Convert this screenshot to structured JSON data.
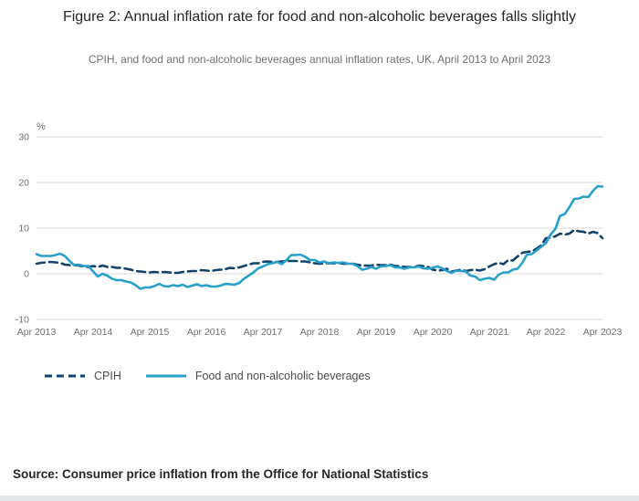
{
  "chart_data": {
    "type": "line",
    "title": "Figure 2: Annual inflation rate for food and non-alcoholic beverages falls slightly",
    "subtitle": "CPIH, and food and non-alcoholic beverages annual inflation rates, UK, April 2013 to April 2023",
    "y_unit": "%",
    "ylim": [
      -10,
      30
    ],
    "y_ticks": [
      30,
      20,
      10,
      0,
      -10
    ],
    "x_tick_labels": [
      "Apr 2013",
      "Apr 2014",
      "Apr 2015",
      "Apr 2016",
      "Apr 2017",
      "Apr 2018",
      "Apr 2019",
      "Apr 2020",
      "Apr 2021",
      "Apr 2022",
      "Apr 2023"
    ],
    "x_start": "Apr 2013",
    "x_end": "Apr 2023",
    "frequency": "monthly",
    "grid": true,
    "legend_position": "bottom-left",
    "series": [
      {
        "name": "CPIH",
        "color": "#12436D",
        "style": "dashed",
        "values": [
          2.2,
          2.4,
          2.5,
          2.6,
          2.5,
          2.4,
          2.0,
          1.9,
          1.9,
          1.8,
          1.6,
          1.5,
          1.7,
          1.5,
          1.8,
          1.5,
          1.5,
          1.3,
          1.3,
          1.1,
          0.9,
          0.6,
          0.5,
          0.4,
          0.3,
          0.4,
          0.3,
          0.4,
          0.3,
          0.2,
          0.2,
          0.4,
          0.5,
          0.6,
          0.6,
          0.8,
          0.7,
          0.6,
          0.8,
          0.9,
          1.0,
          1.3,
          1.2,
          1.4,
          1.7,
          2.0,
          2.3,
          2.3,
          2.6,
          2.7,
          2.6,
          2.6,
          2.7,
          2.8,
          2.8,
          2.8,
          2.7,
          2.7,
          2.5,
          2.3,
          2.2,
          2.3,
          2.3,
          2.3,
          2.4,
          2.2,
          2.2,
          2.2,
          2.0,
          1.8,
          1.8,
          1.8,
          2.0,
          1.9,
          1.9,
          2.0,
          1.7,
          1.7,
          1.5,
          1.5,
          1.4,
          1.8,
          1.7,
          1.5,
          0.9,
          0.7,
          0.8,
          1.1,
          0.5,
          0.7,
          0.9,
          0.6,
          0.8,
          0.9,
          0.7,
          1.0,
          1.6,
          2.1,
          2.4,
          2.1,
          3.0,
          2.9,
          3.8,
          4.6,
          4.8,
          4.9,
          5.5,
          6.2,
          7.8,
          7.9,
          8.2,
          8.8,
          8.6,
          8.8,
          9.6,
          9.3,
          9.2,
          8.8,
          9.2,
          8.9,
          7.8
        ]
      },
      {
        "name": "Food and non-alcoholic beverages",
        "color": "#27A0CC",
        "style": "solid",
        "values": [
          4.3,
          3.9,
          3.9,
          3.9,
          4.1,
          4.4,
          3.9,
          2.8,
          1.9,
          2.0,
          1.7,
          1.7,
          0.5,
          -0.6,
          0.0,
          -0.4,
          -1.1,
          -1.4,
          -1.4,
          -1.7,
          -1.9,
          -2.5,
          -3.3,
          -3.0,
          -3.0,
          -2.7,
          -2.2,
          -2.7,
          -2.8,
          -2.5,
          -2.7,
          -2.4,
          -2.9,
          -2.6,
          -2.3,
          -2.7,
          -2.5,
          -2.8,
          -2.8,
          -2.6,
          -2.2,
          -2.3,
          -2.4,
          -2.0,
          -1.1,
          -0.4,
          0.3,
          1.2,
          1.6,
          2.1,
          2.3,
          2.6,
          2.1,
          3.0,
          4.1,
          4.1,
          4.2,
          3.7,
          3.0,
          3.0,
          2.5,
          2.7,
          2.3,
          2.5,
          2.4,
          2.5,
          2.2,
          2.2,
          1.7,
          0.9,
          1.1,
          1.5,
          1.1,
          1.6,
          1.7,
          1.9,
          1.4,
          1.4,
          1.1,
          1.4,
          1.4,
          1.6,
          1.2,
          1.1,
          1.3,
          1.6,
          1.2,
          0.6,
          0.2,
          0.7,
          0.6,
          0.5,
          -0.4,
          -0.6,
          -1.4,
          -1.1,
          -0.9,
          -1.3,
          -0.2,
          0.3,
          0.3,
          0.9,
          1.1,
          2.4,
          4.2,
          4.3,
          5.1,
          5.9,
          6.7,
          8.6,
          9.8,
          12.7,
          13.1,
          14.6,
          16.4,
          16.5,
          16.9,
          16.8,
          18.2,
          19.2,
          19.1
        ]
      }
    ]
  },
  "colors": {
    "gridline": "#d9d9d9",
    "tick_label": "#707071"
  },
  "source_note": "Source: Consumer price inflation from the Office for National Statistics"
}
